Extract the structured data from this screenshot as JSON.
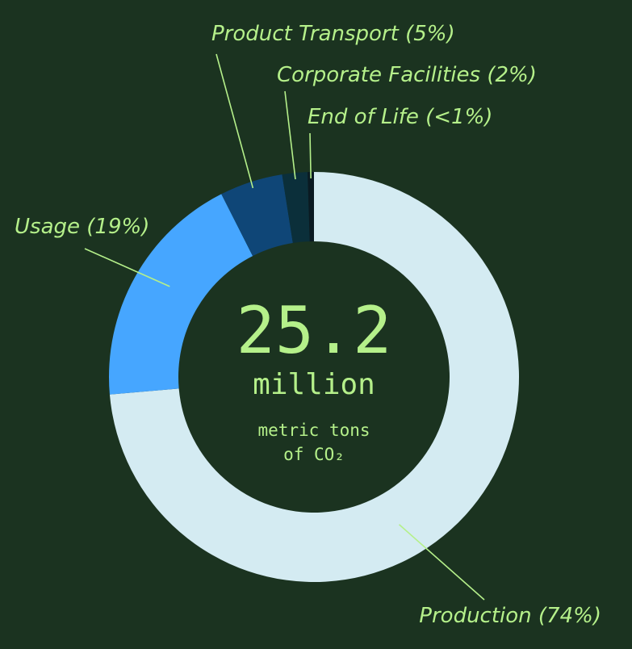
{
  "chart_data": {
    "type": "pie",
    "variant": "donut",
    "center": {
      "value": "25.2",
      "unit": "million",
      "caption_line1": "metric tons",
      "caption_line2": "of CO₂"
    },
    "slices": [
      {
        "name": "Production",
        "value": 74,
        "label": "Production (74%)",
        "color": "#d4ebf2"
      },
      {
        "name": "Usage",
        "value": 19,
        "label": "Usage (19%)",
        "color": "#46a6ff"
      },
      {
        "name": "Product Transport",
        "value": 5,
        "label": "Product Transport (5%)",
        "color": "#0f4677"
      },
      {
        "name": "Corporate Facilities",
        "value": 2,
        "label": "Corporate Facilities (2%)",
        "color": "#0b2f3a"
      },
      {
        "name": "End of Life",
        "value": 0.5,
        "label": "End of Life (<1%)",
        "color": "#0a1a22"
      }
    ]
  },
  "colors": {
    "background": "#1b3320",
    "accent": "#b5f08a"
  }
}
